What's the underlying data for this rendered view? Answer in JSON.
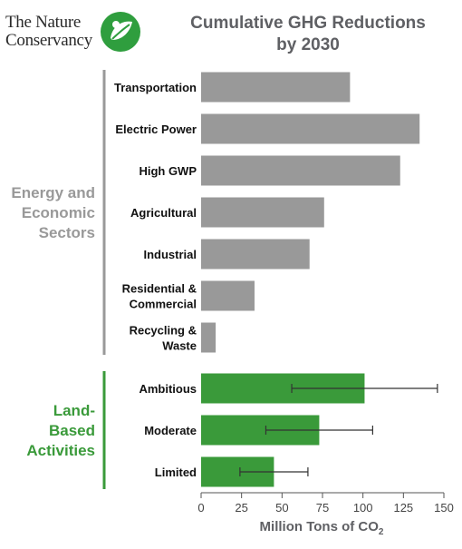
{
  "logo": {
    "line1": "The Nature",
    "line2": "Conservancy"
  },
  "chart_data": {
    "type": "bar",
    "orientation": "horizontal",
    "title_lines": [
      "Cumulative GHG Reductions",
      "by 2030"
    ],
    "xlabel": "Million Tons of CO",
    "xlabel_subscript": "2",
    "xlim": [
      0,
      150
    ],
    "xticks": [
      0,
      25,
      50,
      75,
      100,
      125,
      150
    ],
    "grid": false,
    "groups": [
      {
        "label_lines": [
          "Energy and",
          "Economic",
          "Sectors"
        ],
        "color": "#999999",
        "categories": [
          {
            "label_lines": [
              "Transportation"
            ],
            "value": 92
          },
          {
            "label_lines": [
              "Electric Power"
            ],
            "value": 135
          },
          {
            "label_lines": [
              "High GWP"
            ],
            "value": 123
          },
          {
            "label_lines": [
              "Agricultural"
            ],
            "value": 76
          },
          {
            "label_lines": [
              "Industrial"
            ],
            "value": 67
          },
          {
            "label_lines": [
              "Residential &",
              "Commercial"
            ],
            "value": 33
          },
          {
            "label_lines": [
              "Recycling &",
              "Waste"
            ],
            "value": 9
          }
        ]
      },
      {
        "label_lines": [
          "Land-",
          "Based",
          "Activities"
        ],
        "color": "#3a9a3a",
        "categories": [
          {
            "label_lines": [
              "Ambitious"
            ],
            "value": 101,
            "error_low": 56,
            "error_high": 146
          },
          {
            "label_lines": [
              "Moderate"
            ],
            "value": 73,
            "error_low": 40,
            "error_high": 106
          },
          {
            "label_lines": [
              "Limited"
            ],
            "value": 45,
            "error_low": 24,
            "error_high": 66
          }
        ]
      }
    ]
  }
}
